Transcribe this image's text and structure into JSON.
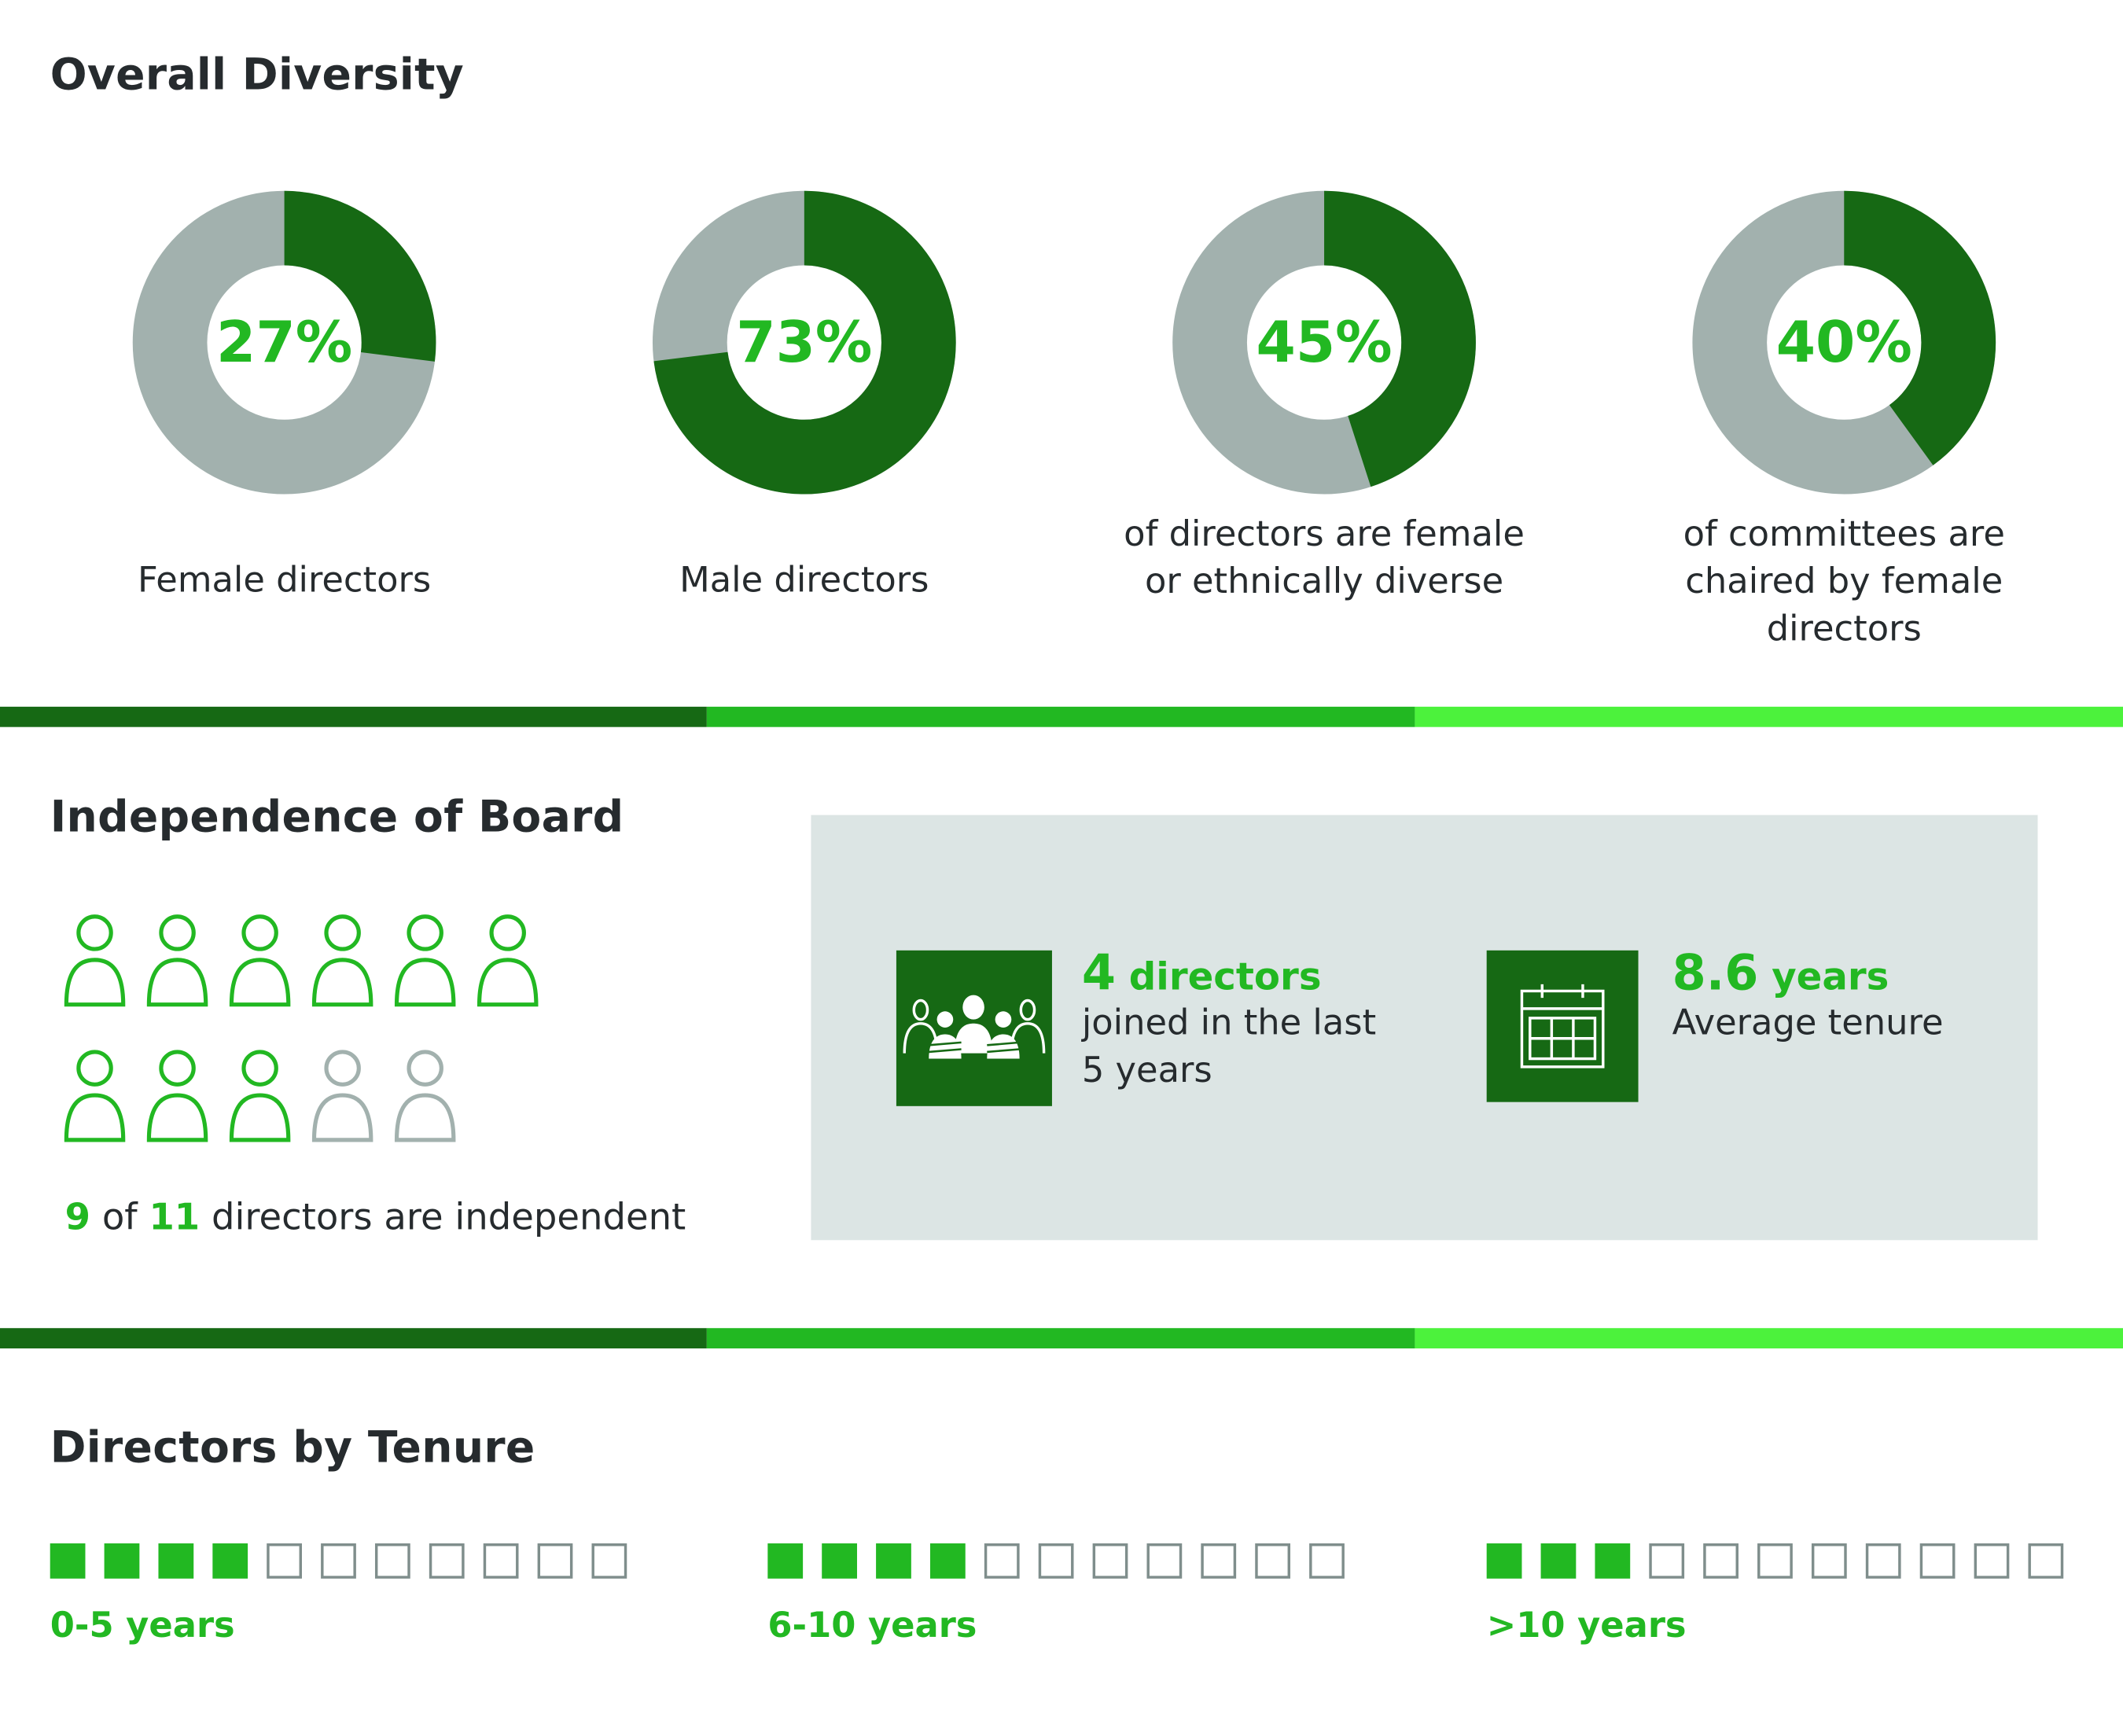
{
  "colors": {
    "dark_green": "#166914",
    "green": "#22b822",
    "bright_green": "#4cf23c",
    "grey": "#a2b1ae",
    "panel": "#dce5e4",
    "text": "#262b2e",
    "inactive": "#a2b1ae"
  },
  "diversity": {
    "title": "Overall Diversity",
    "donuts": [
      {
        "value": 27,
        "pct": "27%",
        "label": "Female directors"
      },
      {
        "value": 73,
        "pct": "73%",
        "label": "Male directors"
      },
      {
        "value": 45,
        "pct": "45%",
        "label": "of directors are female or ethnically diverse"
      },
      {
        "value": 40,
        "pct": "40%",
        "label": "of committees are chaired by female directors"
      }
    ]
  },
  "independence": {
    "title": "Independence of Board",
    "independent": 9,
    "total": 11,
    "caption": {
      "n": "9",
      "of": "of",
      "total": "11",
      "rest": "directors are independent"
    },
    "stats": [
      {
        "icon": "group-people-icon",
        "number": "4",
        "unit": "directors",
        "text": "joined in the last 5 years"
      },
      {
        "icon": "calendar-icon",
        "number": "8.6",
        "unit": "years",
        "text": "Average tenure"
      }
    ]
  },
  "tenure": {
    "title": "Directors by Tenure",
    "total": 11,
    "groups": [
      {
        "label": "0-5 years",
        "count": 4
      },
      {
        "label": "6-10 years",
        "count": 4
      },
      {
        "label": ">10 years",
        "count": 3
      }
    ]
  }
}
